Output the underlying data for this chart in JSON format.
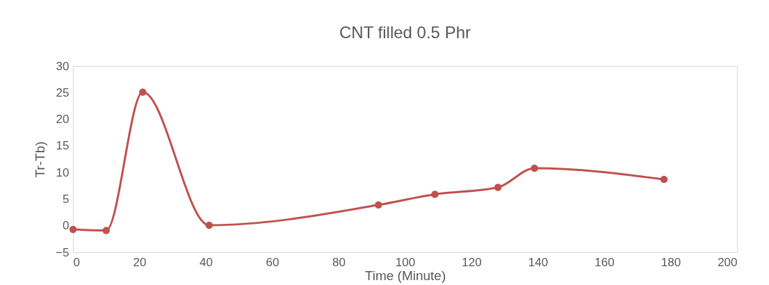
{
  "chart_data": {
    "type": "line",
    "title": "CNT filled 0.5 Phr",
    "xlabel": "Time (Minute)",
    "ylabel": "Tr-Tb)",
    "x": [
      0,
      10,
      21,
      41,
      92,
      109,
      128,
      139,
      178
    ],
    "series": [
      {
        "color": "#c0504d",
        "values": [
          -0.7,
          -0.9,
          25.1,
          0.1,
          3.9,
          5.9,
          7.2,
          10.8,
          8.7
        ]
      }
    ],
    "xlim": [
      0,
      200
    ],
    "xticks": [
      0,
      20,
      40,
      60,
      80,
      100,
      120,
      140,
      160,
      180,
      200
    ],
    "ylim": [
      -5,
      30
    ],
    "yticks": [
      -5,
      0,
      5,
      10,
      15,
      20,
      25,
      30
    ],
    "marker": "circle",
    "line_style": "solid"
  }
}
